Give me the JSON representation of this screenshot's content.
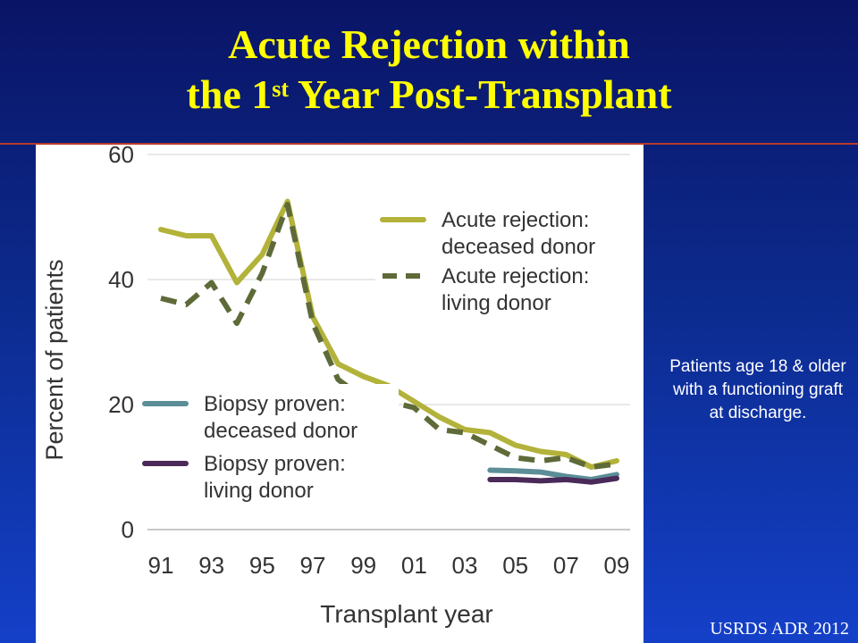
{
  "slide": {
    "title_line1": "Acute Rejection within",
    "title_line2_pre": "the 1",
    "title_line2_sup": "st",
    "title_line2_post": " Year Post-Transplant",
    "side_note": "Patients age 18 & older with a functioning graft at discharge.",
    "source": "USRDS ADR 2012"
  },
  "chart_data": {
    "type": "line",
    "title": "",
    "xlabel": "Transplant year",
    "ylabel": "Percent of patients",
    "ylim": [
      0,
      60
    ],
    "yticks": [
      0,
      20,
      40,
      60
    ],
    "xticks": [
      "91",
      "93",
      "95",
      "97",
      "99",
      "01",
      "03",
      "05",
      "07",
      "09"
    ],
    "grid": true,
    "series": [
      {
        "name": "Acute rejection: deceased donor",
        "color": "#b3b23a",
        "dash": "solid",
        "x": [
          1991,
          1992,
          1993,
          1994,
          1995,
          1996,
          1997,
          1998,
          1999,
          2000,
          2001,
          2002,
          2003,
          2004,
          2005,
          2006,
          2007,
          2008,
          2009
        ],
        "values": [
          48,
          47,
          47,
          39.5,
          44,
          52.5,
          34,
          26.5,
          24.5,
          23,
          20.5,
          18,
          16,
          15.5,
          13.5,
          12.5,
          12,
          10,
          11
        ]
      },
      {
        "name": "Acute rejection: living donor",
        "color": "#5e6a38",
        "dash": "dashed",
        "x": [
          1991,
          1992,
          1993,
          1994,
          1995,
          1996,
          1997,
          1998,
          1999,
          2000,
          2001,
          2002,
          2003,
          2004,
          2005,
          2006,
          2007,
          2008,
          2009
        ],
        "values": [
          37,
          36,
          39.5,
          33,
          41,
          52,
          33,
          24,
          21,
          20.5,
          19.5,
          16,
          15.5,
          13.5,
          11.5,
          11,
          11.5,
          10,
          10.5
        ]
      },
      {
        "name": "Biopsy proven: deceased donor",
        "color": "#5b8e97",
        "dash": "solid",
        "x": [
          2004,
          2005,
          2006,
          2007,
          2008,
          2009
        ],
        "values": [
          9.5,
          9.4,
          9.2,
          8.5,
          8,
          8.8
        ]
      },
      {
        "name": "Biopsy proven: living donor",
        "color": "#4a2a58",
        "dash": "solid",
        "x": [
          2004,
          2005,
          2006,
          2007,
          2008,
          2009
        ],
        "values": [
          8,
          8,
          7.8,
          8,
          7.6,
          8.2
        ]
      }
    ],
    "legend": [
      {
        "line1": "Acute rejection:",
        "line2": "deceased donor"
      },
      {
        "line1": "Acute rejection:",
        "line2": "living donor"
      },
      {
        "line1": "Biopsy proven:",
        "line2": "deceased donor"
      },
      {
        "line1": "Biopsy proven:",
        "line2": "living donor"
      }
    ]
  }
}
